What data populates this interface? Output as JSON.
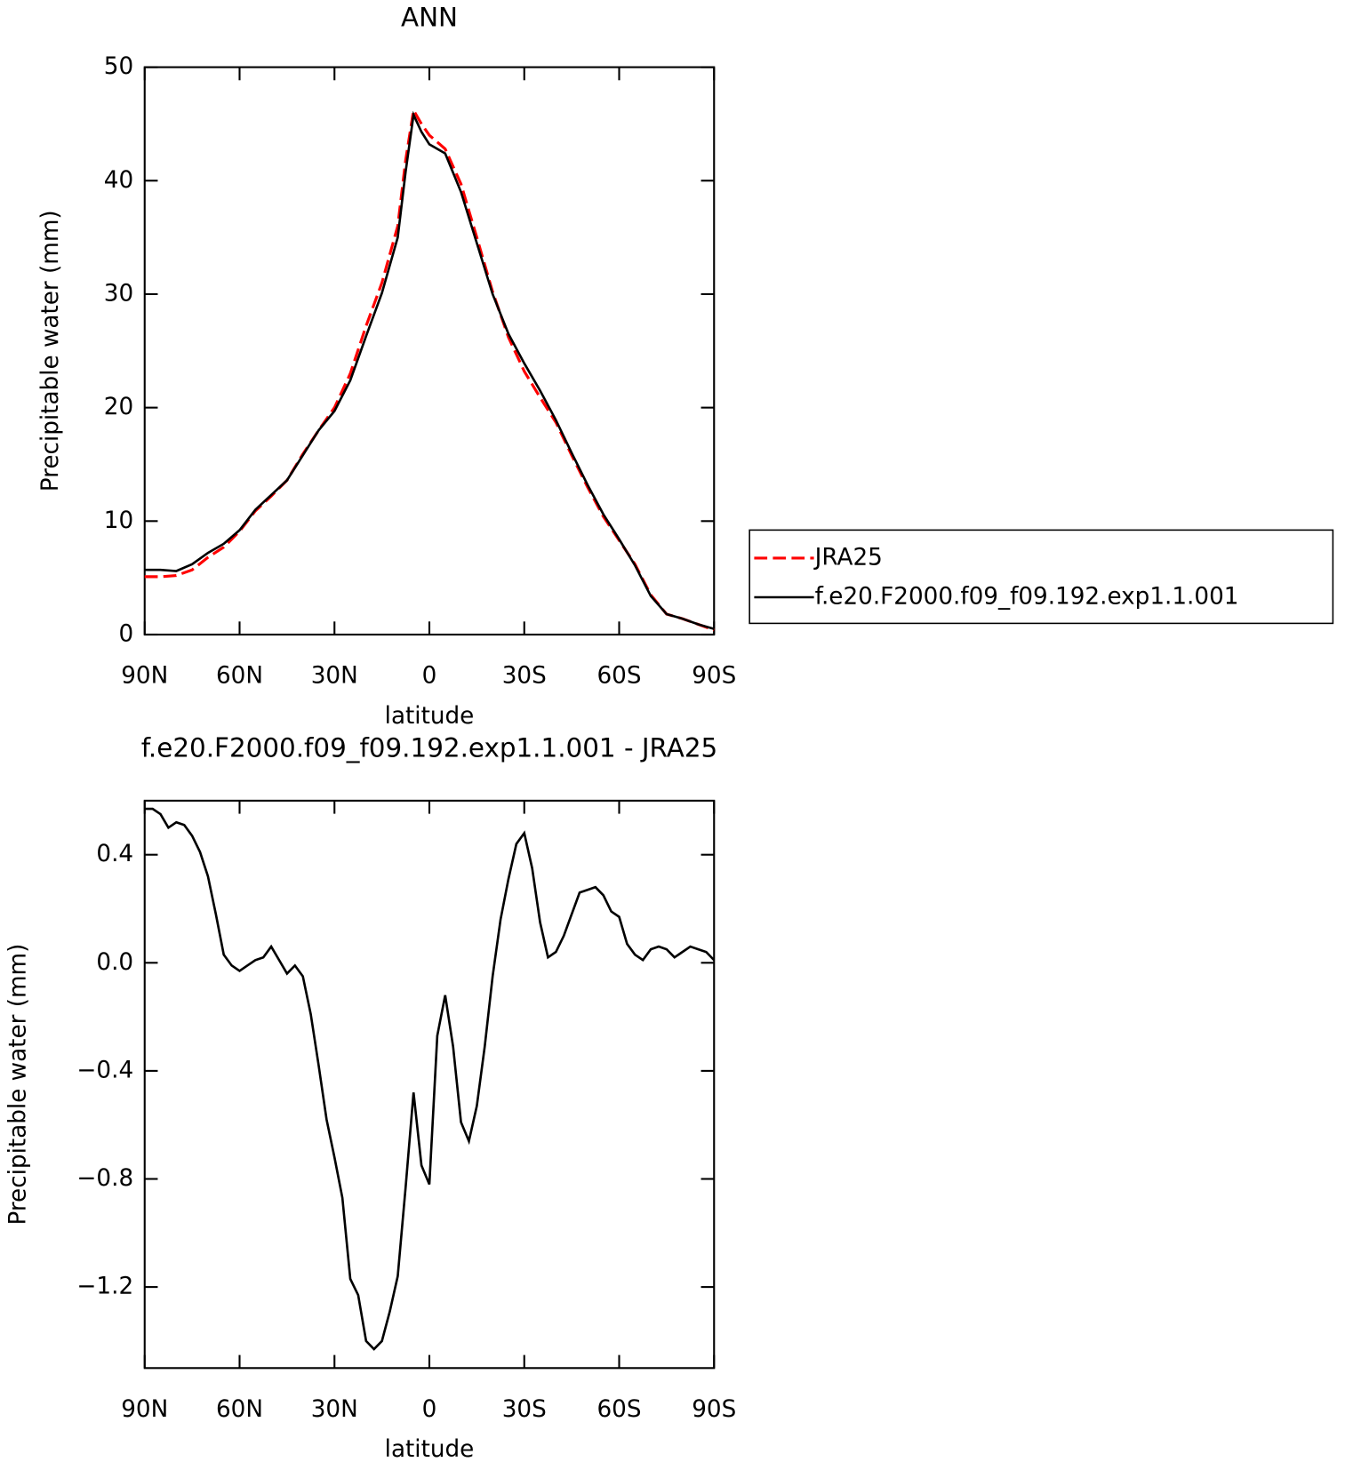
{
  "chart_data": [
    {
      "type": "line",
      "title": "ANN",
      "xlabel": "latitude",
      "ylabel": "Precipitable water (mm)",
      "xlim": [
        90,
        -90
      ],
      "ylim": [
        0,
        50
      ],
      "xticks": [
        {
          "value": 90,
          "label": "90N"
        },
        {
          "value": 60,
          "label": "60N"
        },
        {
          "value": 30,
          "label": "30N"
        },
        0,
        {
          "value": -30,
          "label": "30S"
        },
        {
          "value": -60,
          "label": "60S"
        },
        {
          "value": -90,
          "label": "90S"
        }
      ],
      "yticks": [
        0,
        10,
        20,
        30,
        40,
        50
      ],
      "x": [
        90,
        85,
        80,
        75,
        70,
        65,
        60,
        55,
        50,
        45,
        40,
        35,
        30,
        25,
        20,
        15,
        10,
        7.5,
        5,
        2.5,
        0,
        -5,
        -10,
        -15,
        -20,
        -25,
        -30,
        -35,
        -40,
        -45,
        -50,
        -55,
        -60,
        -65,
        -70,
        -75,
        -80,
        -85,
        -90
      ],
      "series": [
        {
          "name": "JRA25",
          "color": "#ff0000",
          "dash": true,
          "values": [
            5.1,
            5.1,
            5.2,
            5.7,
            6.8,
            7.7,
            9.1,
            10.9,
            12.2,
            13.6,
            15.9,
            18,
            20,
            23,
            27.2,
            31,
            36,
            41.8,
            46.2,
            45,
            44,
            42.8,
            39.7,
            35,
            30.2,
            26.2,
            23.2,
            20.9,
            18.7,
            15.8,
            13,
            10.4,
            8.3,
            6.2,
            3.5,
            1.8,
            1.4,
            0.9,
            0.4
          ]
        },
        {
          "name": "f.e20.F2000.f09_f09.192.exp1.1.001",
          "color": "#000000",
          "dash": false,
          "values": [
            5.7,
            5.7,
            5.6,
            6.2,
            7.2,
            8,
            9.2,
            11,
            12.3,
            13.6,
            15.8,
            18,
            19.7,
            22.4,
            26.3,
            30.1,
            35,
            40.8,
            45.8,
            44.3,
            43.2,
            42.4,
            39,
            34.5,
            30,
            26.5,
            23.9,
            21.5,
            18.9,
            16,
            13.2,
            10.6,
            8.4,
            6.1,
            3.4,
            1.8,
            1.4,
            0.9,
            0.5
          ]
        }
      ]
    },
    {
      "type": "line",
      "title": "f.e20.F2000.f09_f09.192.exp1.1.001 - JRA25",
      "xlabel": "latitude",
      "ylabel": "Precipitable water (mm)",
      "xlim": [
        90,
        -90
      ],
      "ylim": [
        -1.5,
        0.6
      ],
      "xticks": [
        {
          "value": 90,
          "label": "90N"
        },
        {
          "value": 60,
          "label": "60N"
        },
        {
          "value": 30,
          "label": "30N"
        },
        0,
        {
          "value": -30,
          "label": "30S"
        },
        {
          "value": -60,
          "label": "60S"
        },
        {
          "value": -90,
          "label": "90S"
        }
      ],
      "yticks": [
        {
          "value": -1.2,
          "label": "−1.2"
        },
        {
          "value": -0.8,
          "label": "−0.8"
        },
        {
          "value": -0.4,
          "label": "−0.4"
        },
        {
          "value": 0,
          "label": "0.0"
        },
        0.4
      ],
      "x": [
        90,
        87.5,
        85,
        82.5,
        80,
        77.5,
        75,
        72.5,
        70,
        67.5,
        65,
        62.5,
        60,
        57.5,
        55,
        52.5,
        50,
        47.5,
        45,
        42.5,
        40,
        37.5,
        35,
        32.5,
        30,
        27.5,
        25,
        22.5,
        20,
        17.5,
        15,
        12.5,
        10,
        7.5,
        5,
        2.5,
        0,
        -2.5,
        -5,
        -7.5,
        -10,
        -12.5,
        -15,
        -17.5,
        -20,
        -22.5,
        -25,
        -27.5,
        -30,
        -32.5,
        -35,
        -37.5,
        -40,
        -42.5,
        -45,
        -47.5,
        -50,
        -52.5,
        -55,
        -57.5,
        -60,
        -62.5,
        -65,
        -67.5,
        -70,
        -72.5,
        -75,
        -77.5,
        -80,
        -82.5,
        -85,
        -87.5,
        -90
      ],
      "series": [
        {
          "color": "#000000",
          "dash": false,
          "values": [
            0.57,
            0.57,
            0.55,
            0.5,
            0.52,
            0.51,
            0.47,
            0.41,
            0.32,
            0.18,
            0.03,
            -0.01,
            -0.03,
            -0.01,
            0.01,
            0.02,
            0.06,
            0.01,
            -0.04,
            -0.01,
            -0.05,
            -0.19,
            -0.38,
            -0.58,
            -0.72,
            -0.87,
            -1.17,
            -1.23,
            -1.4,
            -1.43,
            -1.4,
            -1.29,
            -1.16,
            -0.83,
            -0.48,
            -0.75,
            -0.82,
            -0.27,
            -0.12,
            -0.31,
            -0.59,
            -0.66,
            -0.53,
            -0.31,
            -0.05,
            0.16,
            0.31,
            0.44,
            0.48,
            0.35,
            0.15,
            0.02,
            0.04,
            0.1,
            0.18,
            0.26,
            0.27,
            0.28,
            0.25,
            0.19,
            0.17,
            0.07,
            0.03,
            0.01,
            0.05,
            0.06,
            0.05,
            0.02,
            0.04,
            0.06,
            0.05,
            0.04,
            0.01
          ]
        }
      ]
    }
  ]
}
